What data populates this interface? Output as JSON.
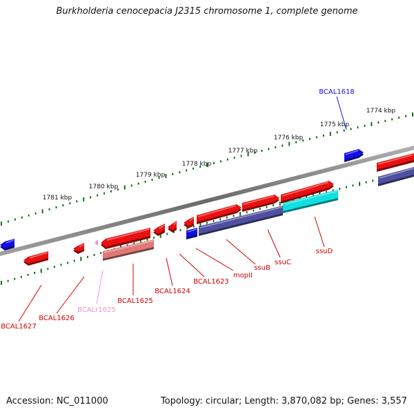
{
  "title": "Burkholderia cenocepacia J2315 chromosome 1, complete genome",
  "footer": {
    "accession": "Accession: NC_011000",
    "summary": "Topology: circular; Length: 3,870,082 bp; Genes: 3,557"
  },
  "scale_labels": [
    "1774 kbp",
    "1775 kbp",
    "1776 kbp",
    "1777 kbp",
    "1778 kbp",
    "1779 kbp",
    "1780 kbp",
    "1781 kbp"
  ],
  "colors": {
    "gene_red": "#e81010",
    "gene_blue": "#1010e0",
    "cds_pink": "#e07878",
    "cds_cyan": "#10e0e0",
    "cds_purple": "#5050a0",
    "rna_pink": "#f090d0",
    "tick_green": "#107010",
    "backbone": "#808080"
  },
  "gene_labels": [
    {
      "text": "BCAL1618",
      "color": "#1010e0"
    },
    {
      "text": "ssuD",
      "color": "#cc0000"
    },
    {
      "text": "ssuC",
      "color": "#cc0000"
    },
    {
      "text": "ssuB",
      "color": "#cc0000"
    },
    {
      "text": "mopII",
      "color": "#cc0000"
    },
    {
      "text": "BCAL1623",
      "color": "#cc0000"
    },
    {
      "text": "BCAL1624",
      "color": "#cc0000"
    },
    {
      "text": "BCAL1625",
      "color": "#cc0000"
    },
    {
      "text": "BCALr1625",
      "color": "#f090d0"
    },
    {
      "text": "BCAL1626",
      "color": "#cc0000"
    },
    {
      "text": "BCAL1627",
      "color": "#cc0000"
    }
  ]
}
